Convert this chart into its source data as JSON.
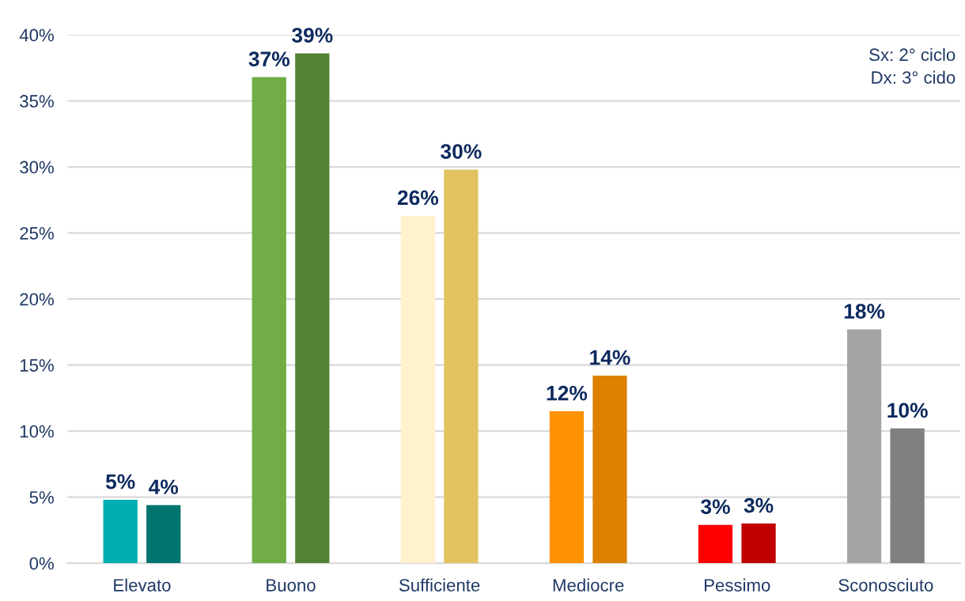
{
  "chart_data": {
    "type": "bar",
    "categories": [
      "Elevato",
      "Buono",
      "Sufficiente",
      "Mediocre",
      "Pessimo",
      "Sconosciuto"
    ],
    "series": [
      {
        "colors": [
          "#00adb0",
          "#70ad47",
          "#fff2cc",
          "#ff9200",
          "#ff0000",
          "#a5a5a5"
        ],
        "values": [
          4.8,
          36.8,
          26.3,
          11.5,
          2.9,
          17.7
        ],
        "value_labels": [
          "5%",
          "37%",
          "26%",
          "12%",
          "3%",
          "18%"
        ]
      },
      {
        "colors": [
          "#00746f",
          "#548235",
          "#e2c360",
          "#dc8000",
          "#c00000",
          "#7f7f7f"
        ],
        "values": [
          4.4,
          38.6,
          29.8,
          14.2,
          3.0,
          10.2
        ],
        "value_labels": [
          "4%",
          "39%",
          "30%",
          "14%",
          "3%",
          "10%"
        ]
      }
    ],
    "ylim": [
      0,
      40
    ],
    "yticks": [
      {
        "value": 0,
        "label": "0%"
      },
      {
        "value": 5,
        "label": "5%"
      },
      {
        "value": 10,
        "label": "10%"
      },
      {
        "value": 15,
        "label": "15%"
      },
      {
        "value": 20,
        "label": "20%"
      },
      {
        "value": 25,
        "label": "25%"
      },
      {
        "value": 30,
        "label": "30%"
      },
      {
        "value": 35,
        "label": "35%"
      },
      {
        "value": 40,
        "label": "40%"
      }
    ],
    "grid": "y",
    "annotations": [
      "Sx: 2° ciclo\nDx: 3° cido"
    ]
  }
}
